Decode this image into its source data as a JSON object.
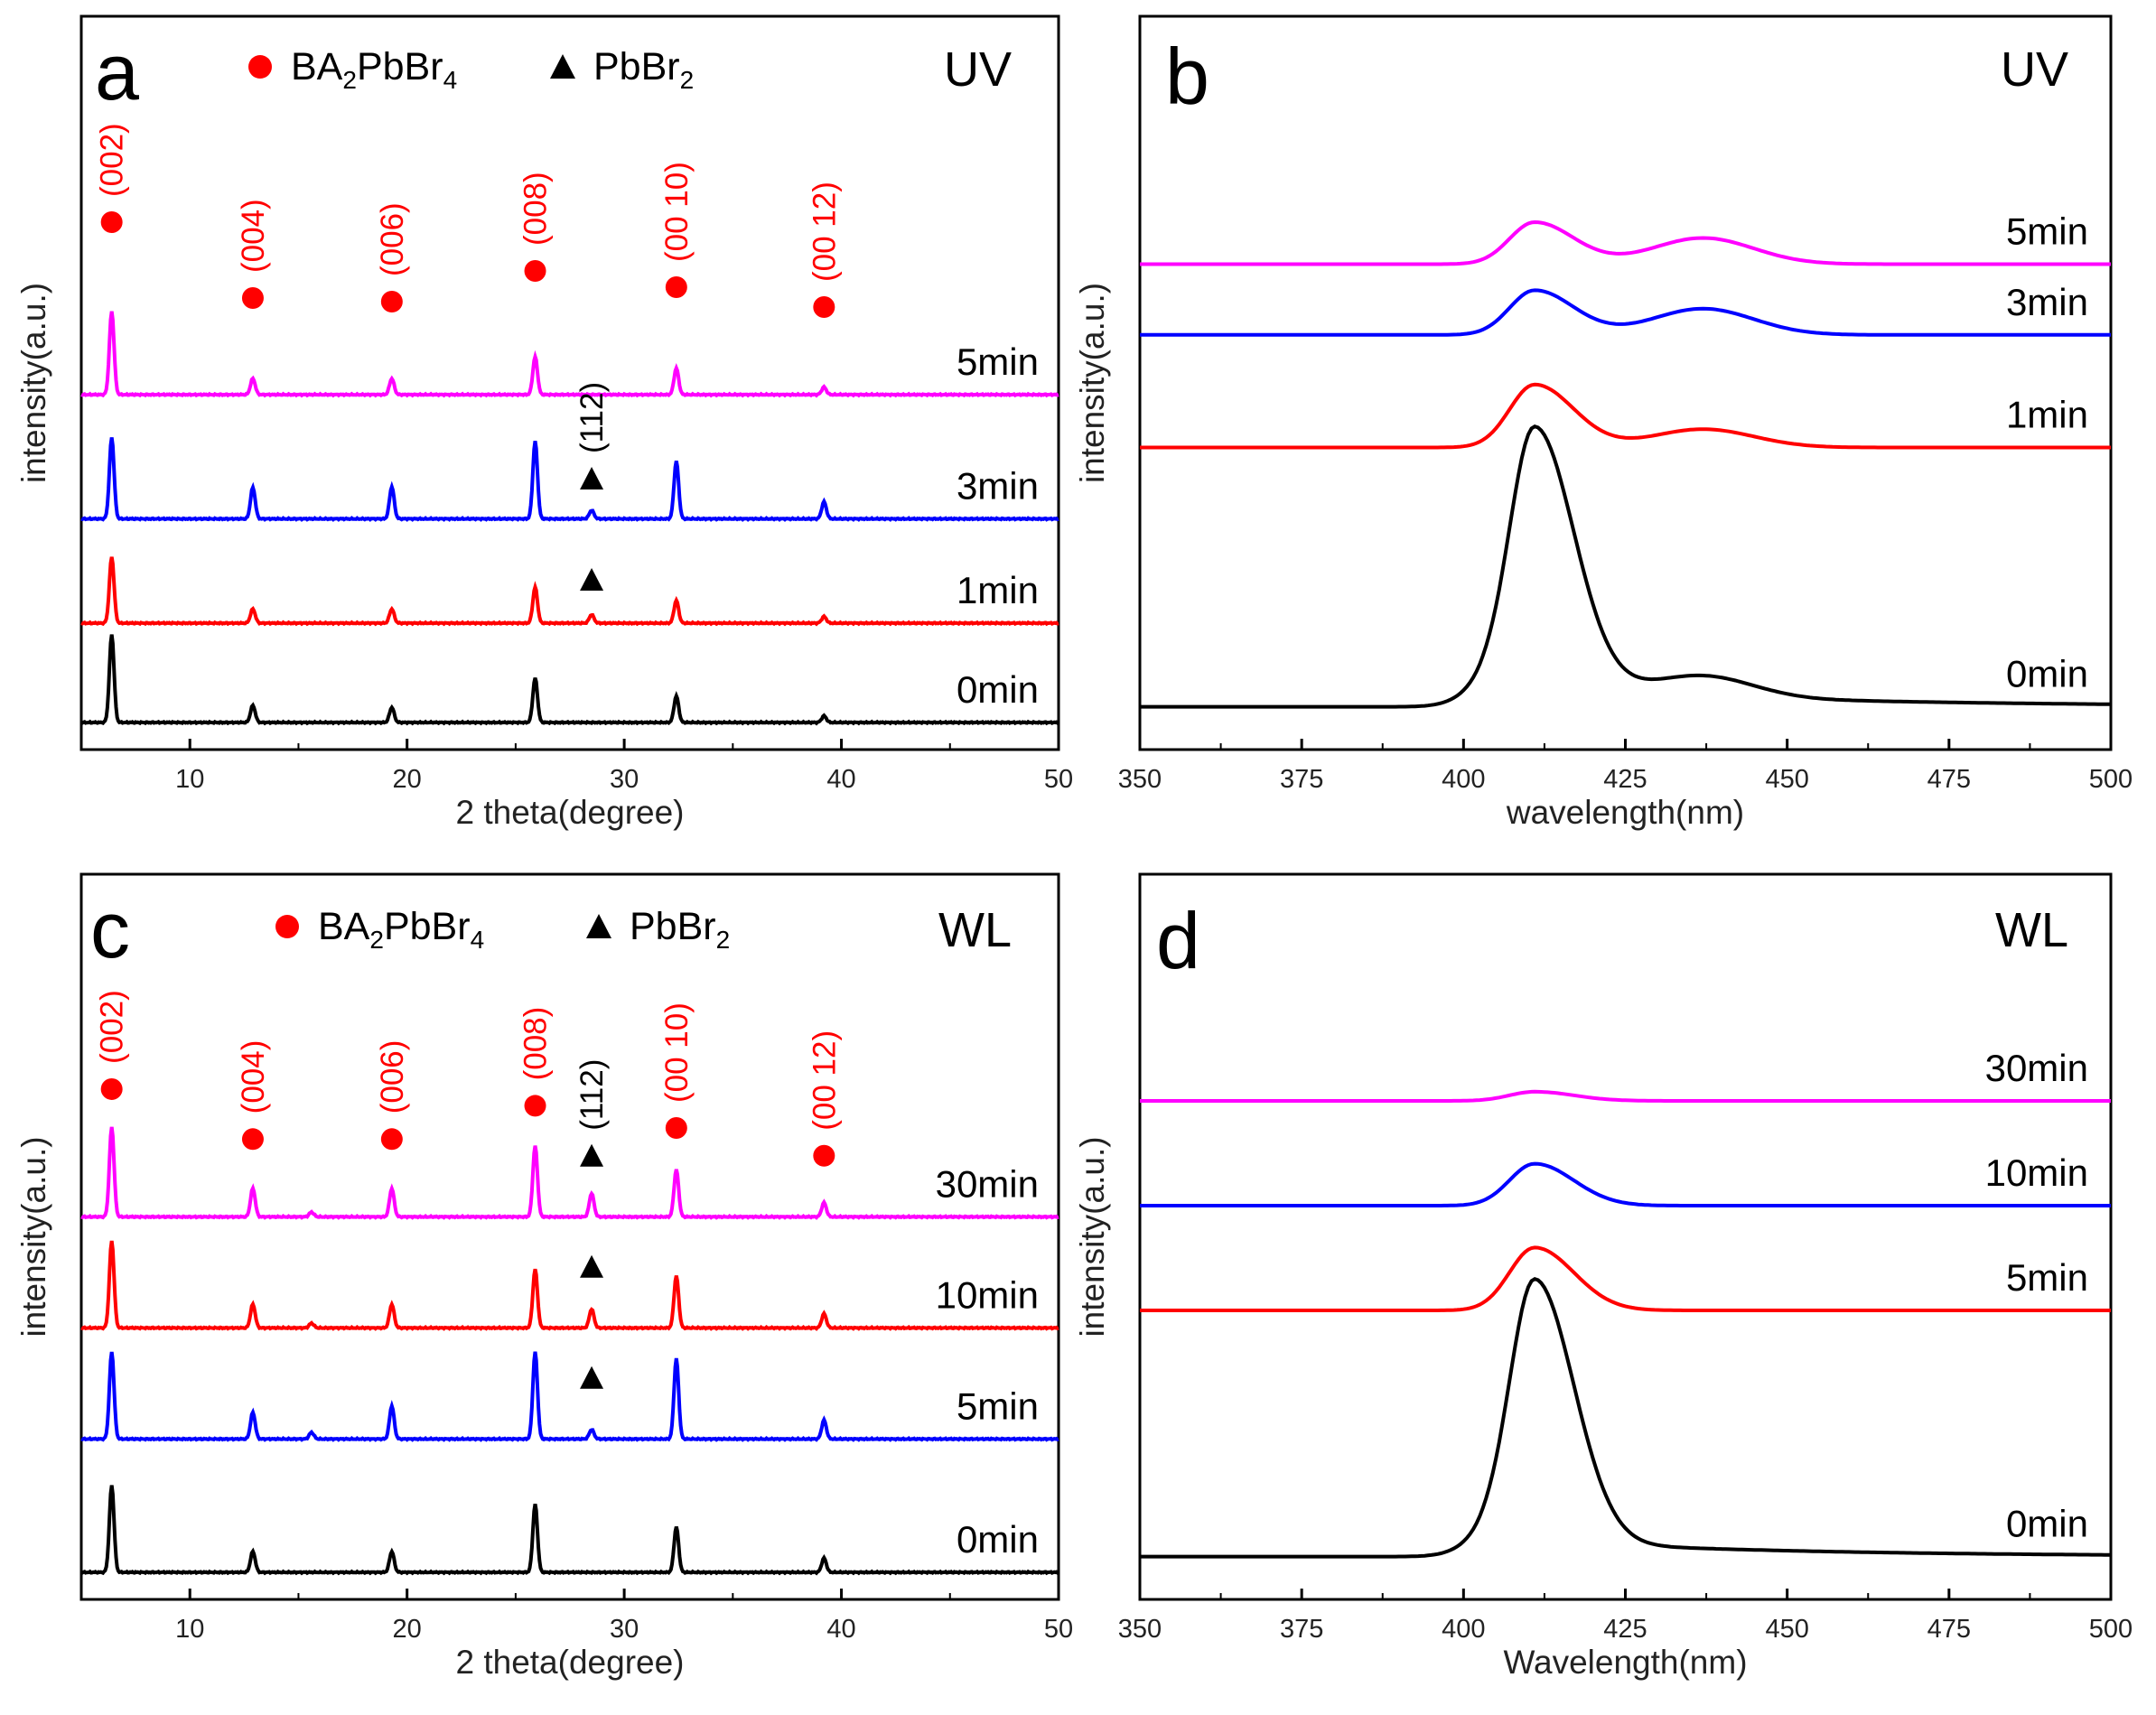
{
  "colors": {
    "black": "#000000",
    "red": "#ff0000",
    "blue": "#0000ff",
    "magenta": "#ff00ff",
    "frame": "#000000"
  },
  "chart_data": [
    {
      "panel": "a",
      "type": "line",
      "kind": "xrd",
      "condition": "UV",
      "xlabel": "2 theta(degree)",
      "ylabel": "intensity(a.u.)",
      "xlim": [
        5,
        50
      ],
      "xticks": [
        10,
        20,
        30,
        40,
        50
      ],
      "legend": [
        {
          "marker": "circle",
          "color": "#ff0000",
          "base": "BA",
          "sub1": "2",
          "mid": "PbBr",
          "sub2": "4"
        },
        {
          "marker": "triangle",
          "color": "#000000",
          "base": "PbBr",
          "sub1": "2",
          "mid": "",
          "sub2": ""
        }
      ],
      "series": [
        {
          "name": "0min",
          "color": "#000000",
          "offset": 0,
          "peaks": [
            [
              6.4,
              0.93
            ],
            [
              12.9,
              0.18
            ],
            [
              19.3,
              0.16
            ],
            [
              25.9,
              0.47
            ],
            [
              32.4,
              0.28
            ],
            [
              39.2,
              0.07
            ]
          ]
        },
        {
          "name": "1min",
          "color": "#ff0000",
          "offset": 1,
          "peaks": [
            [
              6.4,
              0.7
            ],
            [
              12.9,
              0.15
            ],
            [
              19.3,
              0.15
            ],
            [
              25.9,
              0.38
            ],
            [
              28.5,
              0.09
            ],
            [
              32.4,
              0.24
            ],
            [
              39.2,
              0.07
            ]
          ]
        },
        {
          "name": "3min",
          "color": "#0000ff",
          "offset": 2.05,
          "peaks": [
            [
              6.4,
              0.86
            ],
            [
              12.9,
              0.33
            ],
            [
              19.3,
              0.34
            ],
            [
              25.9,
              0.82
            ],
            [
              28.5,
              0.09
            ],
            [
              32.4,
              0.61
            ],
            [
              39.2,
              0.18
            ]
          ]
        },
        {
          "name": "5min",
          "color": "#ff00ff",
          "offset": 3.3,
          "peaks": [
            [
              6.4,
              0.88
            ],
            [
              12.9,
              0.17
            ],
            [
              19.3,
              0.17
            ],
            [
              25.9,
              0.4
            ],
            [
              32.4,
              0.28
            ],
            [
              39.2,
              0.08
            ]
          ]
        }
      ],
      "peak_labels": [
        {
          "x": 6.4,
          "level": 6.0,
          "text": "(002)",
          "color": "#ff0000",
          "marker": "circle"
        },
        {
          "x": 12.9,
          "level": 4.0,
          "text": "(004)",
          "color": "#ff0000",
          "marker": "circle"
        },
        {
          "x": 19.3,
          "level": 3.95,
          "text": "(006)",
          "color": "#ff0000",
          "marker": "circle"
        },
        {
          "x": 25.9,
          "level": 4.6,
          "text": "(008)",
          "color": "#ff0000",
          "marker": "circle"
        },
        {
          "x": 32.4,
          "level": 4.25,
          "text": "(00 10)",
          "color": "#ff0000",
          "marker": "circle"
        },
        {
          "x": 39.2,
          "level": 3.75,
          "text": "(00 12)",
          "color": "#ff0000",
          "marker": "circle"
        },
        {
          "x": 28.5,
          "level": 2.4,
          "text": "(112)",
          "color": "#000000",
          "marker": "triangle"
        },
        {
          "x": 28.5,
          "level": 1.38,
          "text": "",
          "color": "#000000",
          "marker": "triangle"
        }
      ]
    },
    {
      "panel": "b",
      "type": "line",
      "kind": "pl",
      "condition": "UV",
      "xlabel": "wavelength(nm)",
      "ylabel": "intensity(a.u.)",
      "xlim": [
        350,
        500
      ],
      "xticks": [
        350,
        375,
        400,
        425,
        450,
        475,
        500
      ],
      "series": [
        {
          "name": "0min",
          "color": "#000000",
          "base": 0.06,
          "p1": 1.0,
          "p2": 0.08
        },
        {
          "name": "1min",
          "color": "#ff0000",
          "base": 1.05,
          "p1": 0.24,
          "p2": 0.07
        },
        {
          "name": "3min",
          "color": "#0000ff",
          "base": 1.48,
          "p1": 0.17,
          "p2": 0.1
        },
        {
          "name": "5min",
          "color": "#ff00ff",
          "base": 1.75,
          "p1": 0.16,
          "p2": 0.1
        }
      ]
    },
    {
      "panel": "c",
      "type": "line",
      "kind": "xrd",
      "condition": "WL",
      "xlabel": "2 theta(degree)",
      "ylabel": "intensity(a.u.)",
      "xlim": [
        5,
        50
      ],
      "xticks": [
        10,
        20,
        30,
        40,
        50
      ],
      "legend": [
        {
          "marker": "circle",
          "color": "#ff0000",
          "base": "BA",
          "sub1": "2",
          "mid": "PbBr",
          "sub2": "4"
        },
        {
          "marker": "triangle",
          "color": "#000000",
          "base": "PbBr",
          "sub1": "2",
          "mid": "",
          "sub2": ""
        }
      ],
      "series": [
        {
          "name": "0min",
          "color": "#000000",
          "offset": 0,
          "peaks": [
            [
              6.4,
              0.92
            ],
            [
              12.9,
              0.22
            ],
            [
              19.3,
              0.22
            ],
            [
              25.9,
              0.72
            ],
            [
              32.4,
              0.48
            ],
            [
              39.2,
              0.15
            ]
          ]
        },
        {
          "name": "5min",
          "color": "#0000ff",
          "offset": 1.2,
          "peaks": [
            [
              6.4,
              0.92
            ],
            [
              12.9,
              0.28
            ],
            [
              15.6,
              0.07
            ],
            [
              19.3,
              0.35
            ],
            [
              25.9,
              0.92
            ],
            [
              28.5,
              0.1
            ],
            [
              32.4,
              0.85
            ],
            [
              39.2,
              0.2
            ]
          ]
        },
        {
          "name": "10min",
          "color": "#ff0000",
          "offset": 2.2,
          "peaks": [
            [
              6.4,
              0.92
            ],
            [
              12.9,
              0.25
            ],
            [
              15.6,
              0.05
            ],
            [
              19.3,
              0.25
            ],
            [
              25.9,
              0.62
            ],
            [
              28.5,
              0.2
            ],
            [
              32.4,
              0.55
            ],
            [
              39.2,
              0.15
            ]
          ]
        },
        {
          "name": "30min",
          "color": "#ff00ff",
          "offset": 3.2,
          "peaks": [
            [
              6.4,
              0.95
            ],
            [
              12.9,
              0.3
            ],
            [
              15.6,
              0.05
            ],
            [
              19.3,
              0.3
            ],
            [
              25.9,
              0.75
            ],
            [
              28.5,
              0.25
            ],
            [
              32.4,
              0.5
            ],
            [
              39.2,
              0.15
            ]
          ]
        }
      ],
      "peak_labels": [
        {
          "x": 6.4,
          "level": 4.35,
          "text": "(002)",
          "color": "#ff0000",
          "marker": "circle"
        },
        {
          "x": 12.9,
          "level": 3.9,
          "text": "(004)",
          "color": "#ff0000",
          "marker": "circle"
        },
        {
          "x": 19.3,
          "level": 3.9,
          "text": "(006)",
          "color": "#ff0000",
          "marker": "circle"
        },
        {
          "x": 25.9,
          "level": 4.2,
          "text": "(008)",
          "color": "#ff0000",
          "marker": "circle"
        },
        {
          "x": 28.5,
          "level": 3.75,
          "text": "(112)",
          "color": "#000000",
          "marker": "triangle"
        },
        {
          "x": 32.4,
          "level": 4.0,
          "text": "(00 10)",
          "color": "#ff0000",
          "marker": "circle"
        },
        {
          "x": 39.2,
          "level": 3.75,
          "text": "(00 12)",
          "color": "#ff0000",
          "marker": "circle"
        },
        {
          "x": 28.5,
          "level": 2.75,
          "text": "",
          "color": "#000000",
          "marker": "triangle"
        },
        {
          "x": 28.5,
          "level": 1.75,
          "text": "",
          "color": "#000000",
          "marker": "triangle"
        }
      ]
    },
    {
      "panel": "d",
      "type": "line",
      "kind": "pl",
      "condition": "WL",
      "xlabel": "Wavelength(nm)",
      "ylabel": "intensity(a.u.)",
      "xlim": [
        350,
        500
      ],
      "xticks": [
        350,
        375,
        400,
        425,
        450,
        475,
        500
      ],
      "series": [
        {
          "name": "0min",
          "color": "#000000",
          "base": 0.06,
          "p1": 1.0,
          "p2": 0.0
        },
        {
          "name": "5min",
          "color": "#ff0000",
          "base": 1.0,
          "p1": 0.24,
          "p2": 0.0
        },
        {
          "name": "10min",
          "color": "#0000ff",
          "base": 1.4,
          "p1": 0.16,
          "p2": 0.0
        },
        {
          "name": "30min",
          "color": "#ff00ff",
          "base": 1.8,
          "p1": 0.035,
          "p2": 0.0
        }
      ]
    }
  ]
}
